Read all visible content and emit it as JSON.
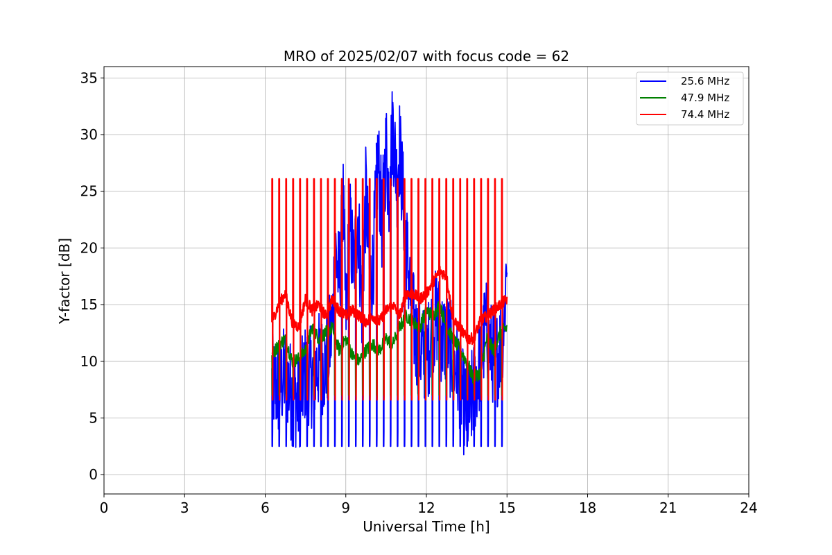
{
  "chart_data": {
    "type": "line",
    "title": "MRO of 2025/02/07 with focus code = 62",
    "xlabel": "Universal Time [h]",
    "ylabel": "Y-factor [dB]",
    "xlim": [
      0,
      24
    ],
    "ylim": [
      -1.7,
      36
    ],
    "xticks": [
      0,
      3,
      6,
      9,
      12,
      15,
      18,
      21,
      24
    ],
    "yticks": [
      0,
      5,
      10,
      15,
      20,
      25,
      30,
      35
    ],
    "grid": true,
    "legend_position": "top-right",
    "calibration_pulses": {
      "start": 6.25,
      "end": 14.8,
      "count": 34,
      "pulse_tops": {
        "25.6 MHz": 2.5,
        "47.9 MHz": 7.0,
        "74.4 MHz": 26.1
      },
      "pulse_bottoms": {
        "25.6 MHz": 3.8,
        "47.9 MHz": 6.8,
        "74.4 MHz": 6.6
      }
    },
    "series": [
      {
        "name": "25.6 MHz",
        "color": "#0000ff",
        "x": [
          6.25,
          6.5,
          6.75,
          7.0,
          7.25,
          7.5,
          7.75,
          8.0,
          8.25,
          8.5,
          8.6,
          8.75,
          8.9,
          9.0,
          9.15,
          9.3,
          9.45,
          9.6,
          9.75,
          9.9,
          10.0,
          10.2,
          10.35,
          10.5,
          10.6,
          10.75,
          10.9,
          11.0,
          11.2,
          11.4,
          11.6,
          11.8,
          12.0,
          12.2,
          12.4,
          12.6,
          12.8,
          13.0,
          13.2,
          13.4,
          13.6,
          13.8,
          14.0,
          14.2,
          14.4,
          14.6,
          14.8,
          14.9,
          15.0
        ],
        "y": [
          8.0,
          7.5,
          9.0,
          7.0,
          6.5,
          9.0,
          8.5,
          10.0,
          9.5,
          13.0,
          20.0,
          17.0,
          24.0,
          14.0,
          22.0,
          18.0,
          23.0,
          15.0,
          25.0,
          17.0,
          18.0,
          28.0,
          22.0,
          29.0,
          25.0,
          31.0,
          26.0,
          29.0,
          22.0,
          16.0,
          12.0,
          11.0,
          10.0,
          13.0,
          14.0,
          12.0,
          12.0,
          10.0,
          9.0,
          6.0,
          5.5,
          8.0,
          10.0,
          13.0,
          11.0,
          10.0,
          12.0,
          14.0,
          20.0
        ]
      },
      {
        "name": "47.9 MHz",
        "color": "#008000",
        "x": [
          6.25,
          6.5,
          6.75,
          7.0,
          7.25,
          7.5,
          7.75,
          8.0,
          8.25,
          8.5,
          8.75,
          9.0,
          9.25,
          9.5,
          9.75,
          10.0,
          10.25,
          10.5,
          10.75,
          11.0,
          11.25,
          11.5,
          11.75,
          12.0,
          12.25,
          12.5,
          12.75,
          13.0,
          13.25,
          13.5,
          13.75,
          14.0,
          14.25,
          14.5,
          14.75,
          15.0
        ],
        "y": [
          10.5,
          11.5,
          12.0,
          10.0,
          10.2,
          11.0,
          13.0,
          12.0,
          12.5,
          13.0,
          11.0,
          12.0,
          10.5,
          10.0,
          11.0,
          11.5,
          11.0,
          12.0,
          11.5,
          13.0,
          14.0,
          13.5,
          13.0,
          14.5,
          14.0,
          15.0,
          13.0,
          12.0,
          11.0,
          10.0,
          8.5,
          9.0,
          12.0,
          11.0,
          12.5,
          13.0
        ]
      },
      {
        "name": "74.4 MHz",
        "color": "#ff0000",
        "x": [
          6.25,
          6.5,
          6.75,
          7.0,
          7.25,
          7.5,
          7.75,
          8.0,
          8.25,
          8.5,
          8.75,
          9.0,
          9.25,
          9.5,
          9.75,
          10.0,
          10.25,
          10.5,
          10.75,
          11.0,
          11.25,
          11.5,
          11.75,
          12.0,
          12.25,
          12.5,
          12.75,
          13.0,
          13.25,
          13.5,
          13.75,
          14.0,
          14.25,
          14.5,
          14.75,
          15.0
        ],
        "y": [
          13.5,
          15.0,
          16.0,
          13.5,
          13.0,
          15.5,
          14.5,
          15.0,
          14.0,
          15.5,
          14.5,
          14.0,
          14.5,
          14.0,
          13.5,
          14.0,
          13.5,
          14.5,
          15.0,
          14.0,
          16.0,
          16.0,
          15.5,
          16.0,
          17.0,
          18.0,
          17.5,
          13.5,
          13.0,
          12.0,
          12.0,
          13.5,
          14.0,
          14.5,
          15.0,
          15.5
        ]
      }
    ]
  }
}
